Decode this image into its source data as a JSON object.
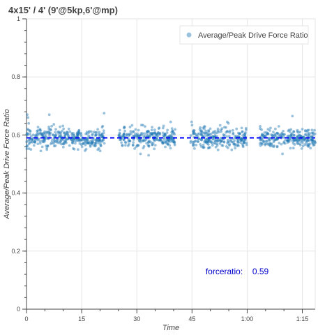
{
  "title": "4x15' / 4' (9'@5kp,6'@mp)",
  "chart_data": {
    "type": "scatter",
    "title": "4x15' / 4' (9'@5kp,6'@mp)",
    "xlabel": "Time",
    "ylabel": "Average/Peak Drive Force Ratio",
    "xlim": [
      0,
      78.5
    ],
    "ylim": [
      0,
      1
    ],
    "x_unit": "minutes",
    "x_ticks": [
      {
        "value": 0,
        "label": "0"
      },
      {
        "value": 15,
        "label": "15"
      },
      {
        "value": 30,
        "label": "30"
      },
      {
        "value": 45,
        "label": "45"
      },
      {
        "value": 60,
        "label": "1:00"
      },
      {
        "value": 75,
        "label": "1:15"
      }
    ],
    "y_ticks": [
      {
        "value": 0,
        "label": "0"
      },
      {
        "value": 0.2,
        "label": "0.2"
      },
      {
        "value": 0.4,
        "label": "0.4"
      },
      {
        "value": 0.6,
        "label": "0.6"
      },
      {
        "value": 0.8,
        "label": "0.8"
      },
      {
        "value": 1,
        "label": "1"
      }
    ],
    "grid": true,
    "legend_position": "top-right",
    "series": [
      {
        "name": "Average/Peak Drive Force Ratio",
        "color": "#1f77b4",
        "segments": [
          {
            "start": 0,
            "end": 21.2
          },
          {
            "start": 25.1,
            "end": 40.5
          },
          {
            "start": 44.6,
            "end": 59.9
          },
          {
            "start": 63.4,
            "end": 78.5
          }
        ],
        "typical_y": 0.59,
        "y_spread": 0.025,
        "outliers": [
          {
            "x": 0.2,
            "y": 0.67
          },
          {
            "x": 0.4,
            "y": 0.66
          },
          {
            "x": 0.6,
            "y": 0.64
          },
          {
            "x": 6.2,
            "y": 0.67
          },
          {
            "x": 21.1,
            "y": 0.675
          },
          {
            "x": 3.9,
            "y": 0.545
          },
          {
            "x": 14.0,
            "y": 0.55
          },
          {
            "x": 31.0,
            "y": 0.535
          },
          {
            "x": 33.2,
            "y": 0.53
          },
          {
            "x": 39.2,
            "y": 0.645
          },
          {
            "x": 44.9,
            "y": 0.645
          },
          {
            "x": 54.6,
            "y": 0.645
          },
          {
            "x": 54.9,
            "y": 0.64
          },
          {
            "x": 69.6,
            "y": 0.535
          },
          {
            "x": 72.3,
            "y": 0.665
          }
        ]
      }
    ],
    "reference_line": {
      "y": 0.59,
      "color": "#0000ff",
      "style": "dashed"
    },
    "annotation": {
      "label": "forceratio:",
      "value": "0.59",
      "x": 48.7,
      "y": 0.12
    }
  }
}
